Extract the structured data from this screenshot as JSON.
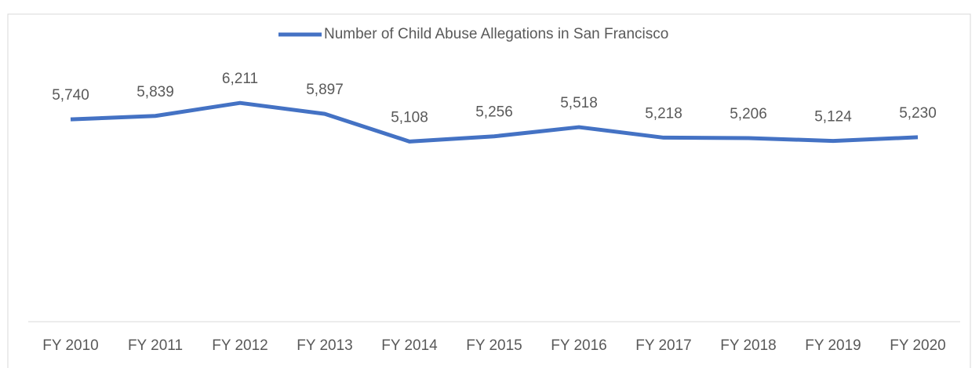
{
  "chart_data": {
    "type": "line",
    "categories": [
      "FY 2010",
      "FY 2011",
      "FY 2012",
      "FY 2013",
      "FY 2014",
      "FY 2015",
      "FY 2016",
      "FY 2017",
      "FY 2018",
      "FY 2019",
      "FY 2020"
    ],
    "series": [
      {
        "name": "Number of Child Abuse Allegations in San Francisco",
        "color": "#4472c4",
        "values": [
          5740,
          5839,
          6211,
          5897,
          5108,
          5256,
          5518,
          5218,
          5206,
          5124,
          5230
        ],
        "value_labels": [
          "5,740",
          "5,839",
          "6,211",
          "5,897",
          "5,108",
          "5,256",
          "5,518",
          "5,218",
          "5,206",
          "5,124",
          "5,230"
        ]
      }
    ],
    "ylim": [
      0,
      7000
    ],
    "legend": "top"
  }
}
